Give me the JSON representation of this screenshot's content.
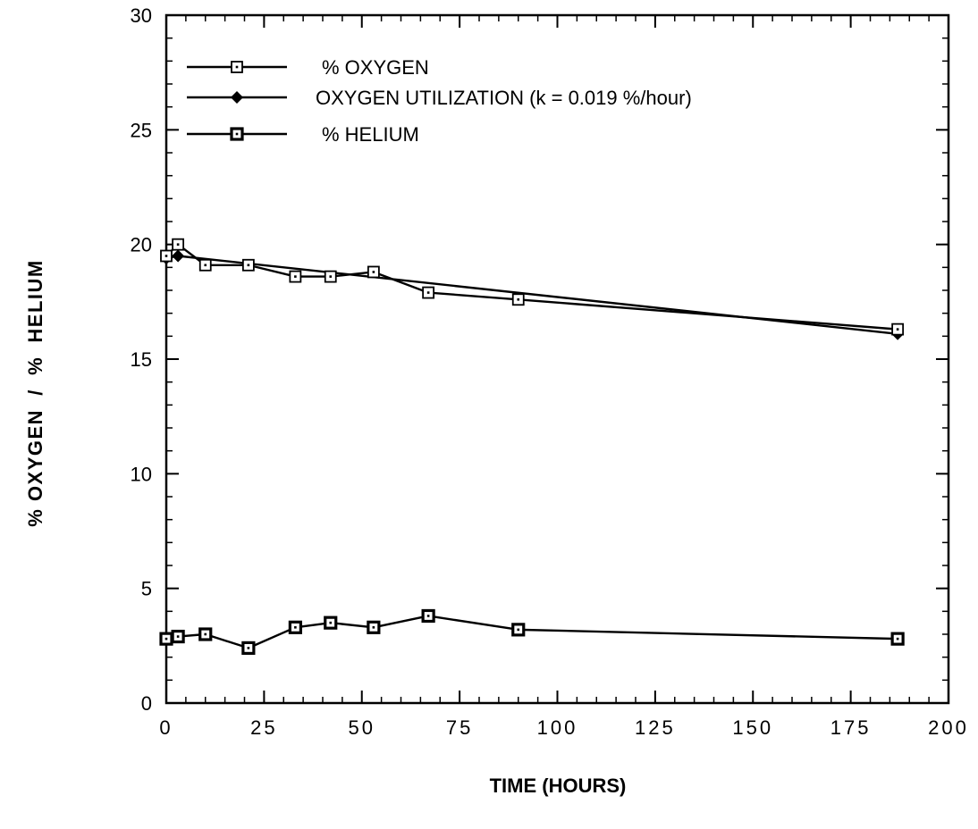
{
  "chart_data": {
    "type": "line",
    "xlabel": "TIME (HOURS)",
    "ylabel": "% OXYGEN  /  %  HELIUM",
    "xlim": [
      0,
      200
    ],
    "ylim": [
      0,
      30
    ],
    "x_ticks": [
      0,
      25,
      50,
      75,
      100,
      125,
      150,
      175,
      200
    ],
    "x_tick_labels": [
      "0",
      "25",
      "50",
      "75",
      "100",
      "125",
      "150",
      "175",
      "200"
    ],
    "y_ticks": [
      0,
      5,
      10,
      15,
      20,
      25,
      30
    ],
    "y_tick_labels": [
      "0",
      "5",
      "10",
      "15",
      "20",
      "25",
      "30"
    ],
    "grid": false,
    "legend_position": "top-left",
    "series": [
      {
        "name": "% OXYGEN",
        "marker": "open-square",
        "color": "#000000",
        "x": [
          0,
          3,
          10,
          21,
          33,
          42,
          53,
          67,
          90,
          187
        ],
        "y": [
          19.5,
          20.0,
          19.1,
          19.1,
          18.6,
          18.6,
          18.8,
          17.9,
          17.6,
          16.3
        ]
      },
      {
        "name": "OXYGEN UTILIZATION (k = 0.019 %/hour)",
        "marker": "filled-diamond",
        "color": "#000000",
        "x": [
          0,
          3,
          187
        ],
        "y": [
          19.4,
          19.5,
          16.1
        ]
      },
      {
        "name": "% HELIUM",
        "marker": "bold-square",
        "color": "#000000",
        "x": [
          0,
          3,
          10,
          21,
          33,
          42,
          53,
          67,
          90,
          187
        ],
        "y": [
          2.8,
          2.9,
          3.0,
          2.4,
          3.3,
          3.5,
          3.3,
          3.8,
          3.2,
          2.8
        ]
      }
    ]
  }
}
